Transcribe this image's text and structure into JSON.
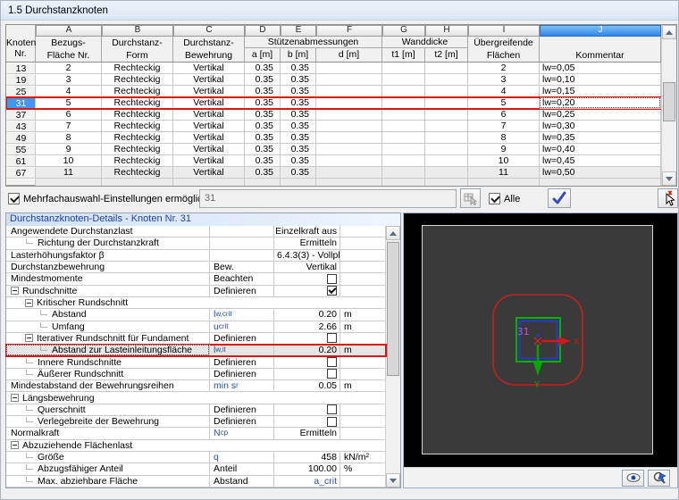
{
  "window": {
    "title": "1.5 Durchstanzknoten"
  },
  "colors": {
    "accent_blue": "#3f97f0",
    "selection_red": "#de1515",
    "viewport_bg": "#3a3a3a",
    "perimeter_red": "#c81e1e",
    "column_green": "#00b400",
    "column_blue": "#2a35cf",
    "node_magenta": "#c94fd0"
  },
  "table": {
    "header": {
      "corner": [
        "Knoten",
        "Nr."
      ],
      "letters": [
        "A",
        "B",
        "C",
        "D",
        "E",
        "F",
        "G",
        "H",
        "I",
        "J"
      ],
      "col_a": [
        "Bezugs-",
        "Fläche Nr."
      ],
      "col_b": [
        "Durchstanz-",
        "Form"
      ],
      "col_c": [
        "Durchstanz-",
        "Bewehrung"
      ],
      "group_def": "Stützenabmessungen",
      "sub_d": "a [m]",
      "sub_e": "b [m]",
      "sub_f": "d [m]",
      "group_gh": "Wanddicke",
      "sub_g": "t1 [m]",
      "sub_h": "t2 [m]",
      "col_i": [
        "Übergreifende",
        "Flächen"
      ],
      "col_j": "Kommentar"
    },
    "rows": [
      {
        "nr": "13",
        "cells": [
          "2",
          "Rechteckig",
          "Vertikal",
          "0.35",
          "0.35",
          "",
          "",
          "",
          "2",
          "lw=0,05"
        ],
        "selected": false,
        "shade": false
      },
      {
        "nr": "19",
        "cells": [
          "3",
          "Rechteckig",
          "Vertikal",
          "0.35",
          "0.35",
          "",
          "",
          "",
          "3",
          "lw=0,10"
        ],
        "selected": false,
        "shade": false
      },
      {
        "nr": "25",
        "cells": [
          "4",
          "Rechteckig",
          "Vertikal",
          "0.35",
          "0.35",
          "",
          "",
          "",
          "4",
          "lw=0,15"
        ],
        "selected": false,
        "shade": false
      },
      {
        "nr": "31",
        "cells": [
          "5",
          "Rechteckig",
          "Vertikal",
          "0.35",
          "0.35",
          "",
          "",
          "",
          "5",
          "lw=0,20"
        ],
        "selected": true,
        "shade": false
      },
      {
        "nr": "37",
        "cells": [
          "6",
          "Rechteckig",
          "Vertikal",
          "0.35",
          "0.35",
          "",
          "",
          "",
          "6",
          "lw=0,25"
        ],
        "selected": false,
        "shade": false
      },
      {
        "nr": "43",
        "cells": [
          "7",
          "Rechteckig",
          "Vertikal",
          "0.35",
          "0.35",
          "",
          "",
          "",
          "7",
          "lw=0,30"
        ],
        "selected": false,
        "shade": false
      },
      {
        "nr": "49",
        "cells": [
          "8",
          "Rechteckig",
          "Vertikal",
          "0.35",
          "0.35",
          "",
          "",
          "",
          "8",
          "lw=0,35"
        ],
        "selected": false,
        "shade": false
      },
      {
        "nr": "55",
        "cells": [
          "9",
          "Rechteckig",
          "Vertikal",
          "0.35",
          "0.35",
          "",
          "",
          "",
          "9",
          "lw=0,40"
        ],
        "selected": false,
        "shade": false
      },
      {
        "nr": "61",
        "cells": [
          "10",
          "Rechteckig",
          "Vertikal",
          "0.35",
          "0.35",
          "",
          "",
          "",
          "10",
          "lw=0,45"
        ],
        "selected": false,
        "shade": false
      },
      {
        "nr": "67",
        "cells": [
          "11",
          "Rechteckig",
          "Vertikal",
          "0.35",
          "0.35",
          "",
          "",
          "",
          "11",
          "lw=0,50"
        ],
        "selected": false,
        "shade": true
      }
    ]
  },
  "multiselect": {
    "label": "Mehrfachauswahl-Einstellungen ermöglichen:",
    "value": "31",
    "alle_label": "Alle"
  },
  "details": {
    "title": "Durchstanzknoten-Details - Knoten Nr.  31",
    "rows": [
      {
        "label": "Angewendete Durchstanzlast",
        "lvl": 0,
        "val": "Einzelkraft aus",
        "unit": ""
      },
      {
        "label": "Richtung der Durchstanzkraft",
        "lvl": 1,
        "tree": true,
        "val": "Ermitteln",
        "unit": ""
      },
      {
        "label": "Lasterhöhungsfaktor β",
        "lvl": 0,
        "val": "6.4.3(3) - Vollpl",
        "val_left": true,
        "unit": ""
      },
      {
        "label": "Durchstanzbewehrung",
        "lvl": 0,
        "sym": "Bew.",
        "val": "Vertikal",
        "unit": ""
      },
      {
        "label": "Mindestmomente",
        "lvl": 0,
        "sym": "Beachten",
        "check": false
      },
      {
        "label": "Rundschnitte",
        "lvl": 0,
        "expand": true,
        "sym": "Definieren",
        "check": true
      },
      {
        "label": "Kritischer Rundschnitt",
        "lvl": 1,
        "expand": true,
        "section": true
      },
      {
        "label": "Abstand",
        "lvl": 2,
        "tree": true,
        "sym": "l",
        "sym_sub": "w,crit",
        "sym_blue": true,
        "val": "0.20",
        "unit": "m"
      },
      {
        "label": "Umfang",
        "lvl": 2,
        "tree": true,
        "sym": "u",
        "sym_sub": "crit",
        "sym_blue": true,
        "val": "2.66",
        "unit": "m"
      },
      {
        "label": "Iterativer Rundschnitt für Fundament",
        "lvl": 1,
        "expand": true,
        "sym": "Definieren",
        "check": false
      },
      {
        "label": "Abstand zur Lasteinleitungsfläche",
        "lvl": 2,
        "tree": true,
        "sym": "l",
        "sym_sub": "w,it",
        "sym_blue": true,
        "val": "0.20",
        "unit": "m",
        "selected": true
      },
      {
        "label": "Innere Rundschnitte",
        "lvl": 1,
        "tree": true,
        "sym": "Definieren",
        "check": false
      },
      {
        "label": "Äußerer Rundschnitt",
        "lvl": 1,
        "tree": true,
        "sym": "Definieren",
        "check": false
      },
      {
        "label": "Mindestabstand der Bewehrungsreihen",
        "lvl": 0,
        "sym": "min s",
        "sym_sub": "r",
        "sym_blue": true,
        "val": "0.05",
        "unit": "m"
      },
      {
        "label": "Längsbewehrung",
        "lvl": 0,
        "expand": true,
        "section": true
      },
      {
        "label": "Querschnitt",
        "lvl": 1,
        "tree": true,
        "sym": "Definieren",
        "check": false
      },
      {
        "label": "Verlegebreite der Bewehrung",
        "lvl": 1,
        "tree": true,
        "sym": "Definieren",
        "check": false
      },
      {
        "label": "Normalkraft",
        "lvl": 0,
        "sym": "N",
        "sym_sub": "cp",
        "sym_blue": true,
        "val": "Ermitteln",
        "unit": ""
      },
      {
        "label": "Abzuziehende Flächenlast",
        "lvl": 0,
        "expand": true,
        "section": true
      },
      {
        "label": "Größe",
        "lvl": 1,
        "tree": true,
        "sym": "q",
        "sym_blue": true,
        "val": "458",
        "unit": "kN/m²"
      },
      {
        "label": "Abzugsfähiger Anteil",
        "lvl": 1,
        "tree": true,
        "sym": "Anteil",
        "val": "100.00",
        "unit": "%"
      },
      {
        "label": "Max. abziehbare Fläche",
        "lvl": 1,
        "tree": true,
        "sym": "Abstand",
        "val": "a_crit",
        "val_blue": true,
        "unit": ""
      }
    ]
  },
  "viewport": {
    "node_label": "31",
    "axis_x": "X",
    "axis_y": "Y"
  }
}
